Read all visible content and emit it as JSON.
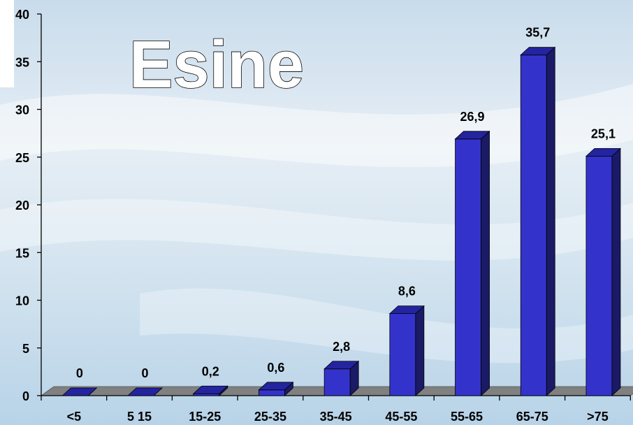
{
  "chart_data": {
    "type": "bar",
    "title": "Esine",
    "categories": [
      "<5",
      "5 15",
      "15-25",
      "25-35",
      "35-45",
      "45-55",
      "55-65",
      "65-75",
      ">75"
    ],
    "values": [
      0,
      0,
      0.2,
      0.6,
      2.8,
      8.6,
      26.9,
      35.7,
      25.1
    ],
    "value_labels": [
      "0",
      "0",
      "0,2",
      "0,6",
      "2,8",
      "8,6",
      "26,9",
      "35,7",
      "25,1"
    ],
    "y_ticks": [
      "0",
      "5",
      "10",
      "15",
      "20",
      "25",
      "30",
      "35",
      "40"
    ],
    "ylim": [
      0,
      40
    ],
    "grid": false,
    "legend": "none",
    "style": "3d-column",
    "colors": {
      "bar_front": "#3333cc",
      "bar_side": "#1a1a66",
      "bar_top": "#2424a0",
      "floor": "#808080"
    }
  }
}
